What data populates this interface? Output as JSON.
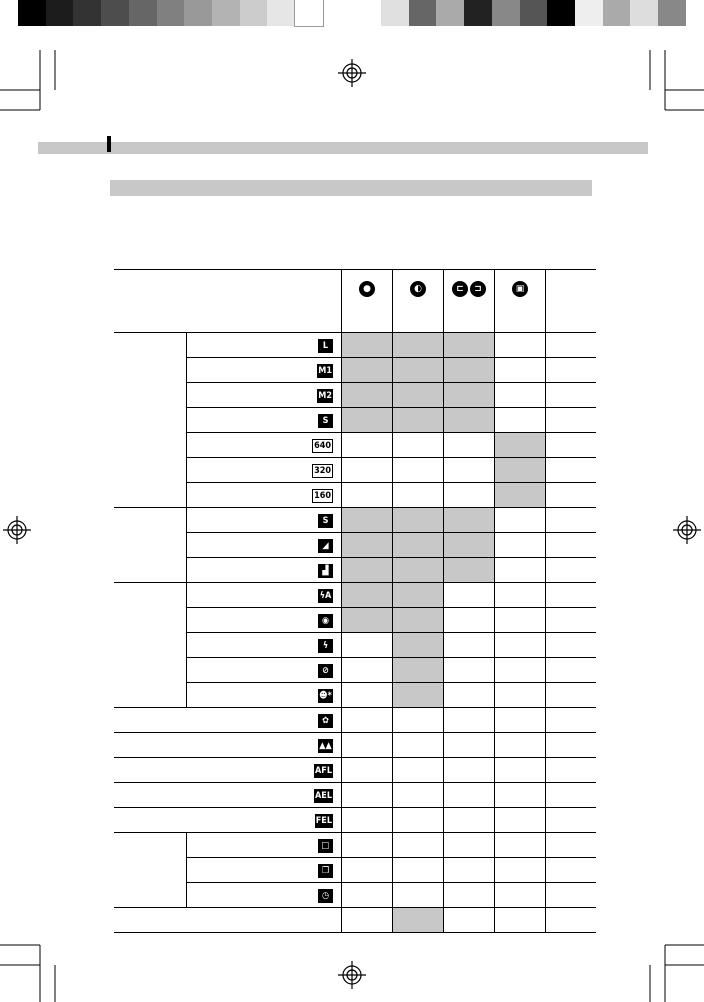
{
  "color_bar_left": [
    "#000000",
    "#1c1c1c",
    "#333333",
    "#4d4d4d",
    "#666666",
    "#808080",
    "#999999",
    "#b3b3b3",
    "#cccccc",
    "#e6e6e6",
    "#ffffff"
  ],
  "color_bar_right": [
    "#e0e0e0",
    "#666666",
    "#aaaaaa",
    "#222222",
    "#888888",
    "#555555",
    "#000000",
    "#eeeeee",
    "#aaaaaa",
    "#dddddd",
    "#888888"
  ],
  "shade_color": "#c8c8c8",
  "table": {
    "header_icons": [
      [
        "record-icon"
      ],
      [
        "stitch-icon"
      ],
      [
        "panorama-left-icon",
        "panorama-right-icon"
      ],
      [
        "movie-icon"
      ],
      []
    ],
    "header_icon_glyphs": [
      [
        "●"
      ],
      [
        "◐"
      ],
      [
        "⊏",
        "⊐"
      ],
      [
        "▣"
      ],
      []
    ],
    "rows": [
      {
        "group": 1,
        "icon": "L",
        "outline": false,
        "shade": [
          1,
          1,
          1,
          0,
          0
        ]
      },
      {
        "group": 1,
        "icon": "M1",
        "outline": false,
        "shade": [
          1,
          1,
          1,
          0,
          0
        ]
      },
      {
        "group": 1,
        "icon": "M2",
        "outline": false,
        "shade": [
          1,
          1,
          1,
          0,
          0
        ]
      },
      {
        "group": 1,
        "icon": "S",
        "outline": false,
        "shade": [
          1,
          1,
          1,
          0,
          0
        ]
      },
      {
        "group": 1,
        "icon": "640",
        "outline": true,
        "shade": [
          0,
          0,
          0,
          1,
          0
        ]
      },
      {
        "group": 1,
        "icon": "320",
        "outline": true,
        "shade": [
          0,
          0,
          0,
          1,
          0
        ]
      },
      {
        "group": 1,
        "icon": "160",
        "outline": true,
        "shade": [
          0,
          0,
          0,
          1,
          0
        ]
      },
      {
        "group": 2,
        "icon": "S",
        "outline": false,
        "shade": [
          1,
          1,
          1,
          0,
          0
        ]
      },
      {
        "group": 2,
        "icon": "◢",
        "outline": false,
        "shade": [
          1,
          1,
          1,
          0,
          0
        ]
      },
      {
        "group": 2,
        "icon": "▟",
        "outline": false,
        "shade": [
          1,
          1,
          1,
          0,
          0
        ]
      },
      {
        "group": 3,
        "icon": "ϟA",
        "outline": false,
        "shade": [
          1,
          1,
          0,
          0,
          0
        ]
      },
      {
        "group": 3,
        "icon": "◉",
        "outline": false,
        "shade": [
          1,
          1,
          0,
          0,
          0
        ]
      },
      {
        "group": 3,
        "icon": "ϟ",
        "outline": false,
        "shade": [
          0,
          1,
          0,
          0,
          0
        ]
      },
      {
        "group": 3,
        "icon": "⊘",
        "outline": false,
        "shade": [
          0,
          1,
          0,
          0,
          0
        ]
      },
      {
        "group": 3,
        "icon": "☻*",
        "outline": false,
        "shade": [
          0,
          1,
          0,
          0,
          0
        ]
      },
      {
        "group": 0,
        "icon": "✿",
        "outline": false,
        "shade": [
          0,
          0,
          0,
          0,
          0
        ]
      },
      {
        "group": 0,
        "icon": "▲▲",
        "outline": false,
        "shade": [
          0,
          0,
          0,
          0,
          0
        ]
      },
      {
        "group": 0,
        "icon": "AFL",
        "outline": false,
        "shade": [
          0,
          0,
          0,
          0,
          0
        ]
      },
      {
        "group": 0,
        "icon": "AEL",
        "outline": false,
        "shade": [
          0,
          0,
          0,
          0,
          0
        ]
      },
      {
        "group": 0,
        "icon": "FEL",
        "outline": false,
        "shade": [
          0,
          0,
          0,
          0,
          0
        ]
      },
      {
        "group": 4,
        "icon": "□",
        "outline": false,
        "shade": [
          0,
          0,
          0,
          0,
          0
        ]
      },
      {
        "group": 4,
        "icon": "❐",
        "outline": false,
        "shade": [
          0,
          0,
          0,
          0,
          0
        ]
      },
      {
        "group": 4,
        "icon": "◷",
        "outline": false,
        "shade": [
          0,
          0,
          0,
          0,
          0
        ]
      },
      {
        "group": 0,
        "icon": "",
        "outline": false,
        "shade": [
          0,
          1,
          0,
          0,
          0
        ]
      }
    ]
  }
}
